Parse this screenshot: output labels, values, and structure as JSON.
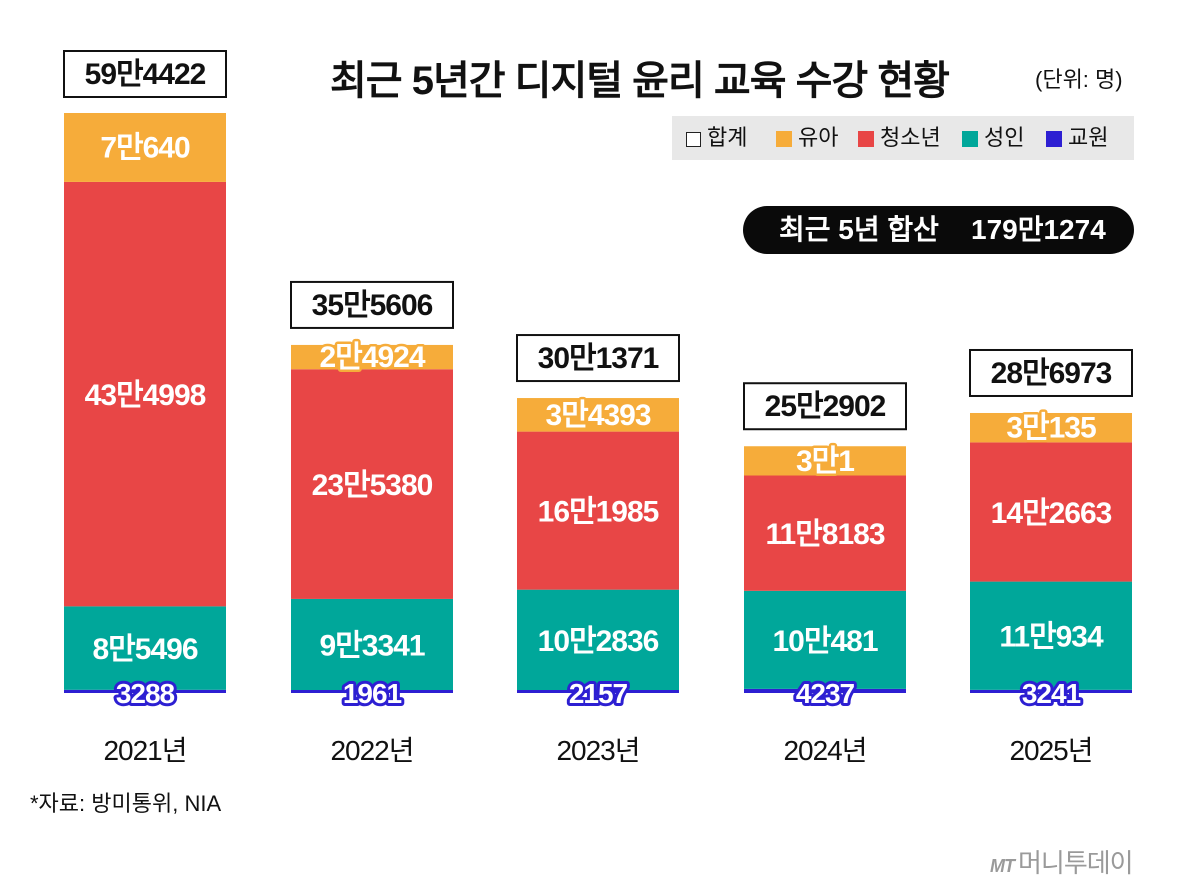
{
  "title": "최근 5년간 디지털 윤리 교육 수강 현황",
  "unit": "(단위: 명)",
  "legend": [
    {
      "label": "합계",
      "color": "#ffffff"
    },
    {
      "label": "유아",
      "color": "#f6ac3a"
    },
    {
      "label": "청소년",
      "color": "#e84646"
    },
    {
      "label": "성인",
      "color": "#00a79a"
    },
    {
      "label": "교원",
      "color": "#2d1fd2"
    }
  ],
  "summary": {
    "label": "최근 5년 합산",
    "value": "179만1274"
  },
  "source": "*자료: 방미통위, NIA",
  "brand": {
    "mark": "MT",
    "name": "머니투데이"
  },
  "chart_data": {
    "type": "bar",
    "stacked": true,
    "categories": [
      "2021년",
      "2022년",
      "2023년",
      "2024년",
      "2025년"
    ],
    "series": [
      {
        "name": "교원",
        "color": "#2d1fd2",
        "values": [
          3288,
          1961,
          2157,
          4237,
          3241
        ],
        "labels": [
          "3288",
          "1961",
          "2157",
          "4237",
          "3241"
        ]
      },
      {
        "name": "성인",
        "color": "#00a79a",
        "values": [
          85496,
          93341,
          102836,
          100481,
          110934
        ],
        "labels": [
          "8만5496",
          "9만3341",
          "10만2836",
          "10만481",
          "11만934"
        ]
      },
      {
        "name": "청소년",
        "color": "#e84646",
        "values": [
          434998,
          235380,
          161985,
          118183,
          142663
        ],
        "labels": [
          "43만4998",
          "23만5380",
          "16만1985",
          "11만8183",
          "14만2663"
        ]
      },
      {
        "name": "유아",
        "color": "#f6ac3a",
        "values": [
          70640,
          24924,
          34393,
          30001,
          30135
        ],
        "labels": [
          "7만640",
          "2만4924",
          "3만4393",
          "3만1",
          "3만135"
        ]
      }
    ],
    "totals": [
      594422,
      355606,
      301371,
      252902,
      286973
    ],
    "total_labels": [
      "59만4422",
      "35만5606",
      "30만1371",
      "25만2902",
      "28만6973"
    ],
    "ylim": [
      0,
      594422
    ]
  }
}
